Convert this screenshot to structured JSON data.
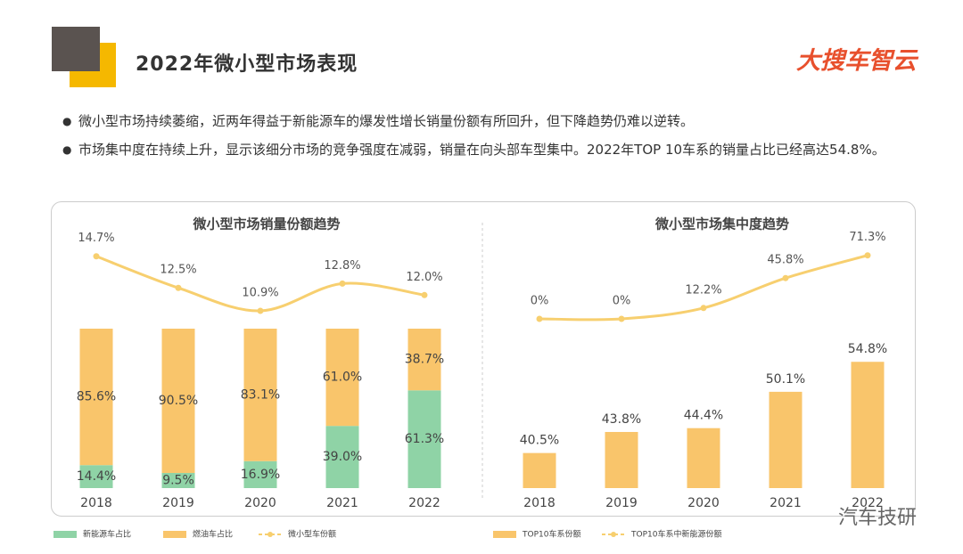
{
  "header": {
    "title": "2022年微小型市场表现",
    "logo": "大搜车智云"
  },
  "bullets": [
    "微小型市场持续萎缩，近两年得益于新能源车的爆发性增长销量份额有所回升，但下降趋势仍难以逆转。",
    "市场集中度在持续上升，显示该细分市场的竞争强度在减弱，销量在向头部车型集中。2022年TOP 10车系的销量占比已经高达54.8%。"
  ],
  "watermark": "汽车技研",
  "chart_data": [
    {
      "type": "stacked_bar",
      "title": "微小型市场销量份额趋势",
      "categories": [
        "2018",
        "2019",
        "2020",
        "2021",
        "2022"
      ],
      "ylim": [
        0,
        100
      ],
      "y2lim": [
        9.6,
        15.8
      ],
      "series": [
        {
          "name": "新能源车占比",
          "color": "#8fd3a6",
          "values": [
            14.4,
            9.5,
            16.9,
            39.0,
            61.3
          ],
          "value_labels": [
            "14.4%",
            "9.5%",
            "16.9%",
            "39.0%",
            "61.3%"
          ]
        },
        {
          "name": "燃油车占比",
          "color": "#f9c56b",
          "values": [
            85.6,
            90.5,
            83.1,
            61.0,
            38.7
          ],
          "value_labels": [
            "85.6%",
            "90.5%",
            "83.1%",
            "61.0%",
            "38.7%"
          ]
        },
        {
          "name": "微小型车份额",
          "color": "#f7cf6f",
          "type": "line",
          "axis": "y2",
          "values": [
            14.7,
            12.5,
            10.9,
            12.8,
            12.0
          ],
          "value_labels": [
            "14.7%",
            "12.5%",
            "10.9%",
            "12.8%",
            "12.0%"
          ]
        }
      ]
    },
    {
      "type": "bar",
      "title": "微小型市场集中度趋势",
      "categories": [
        "2018",
        "2019",
        "2020",
        "2021",
        "2022"
      ],
      "ylim": [
        35,
        60
      ],
      "y2lim": [
        -12,
        88
      ],
      "series": [
        {
          "name": "TOP10车系份额",
          "color": "#f9c56b",
          "values": [
            40.5,
            43.8,
            44.4,
            50.1,
            54.8
          ],
          "value_labels": [
            "40.5%",
            "43.8%",
            "44.4%",
            "50.1%",
            "54.8%"
          ]
        },
        {
          "name": "TOP10车系中新能源份额",
          "color": "#f7cf6f",
          "type": "line",
          "axis": "y2",
          "values": [
            0,
            0,
            12.2,
            45.8,
            71.3
          ],
          "value_labels": [
            "0%",
            "0%",
            "12.2%",
            "45.8%",
            "71.3%"
          ]
        }
      ]
    }
  ]
}
